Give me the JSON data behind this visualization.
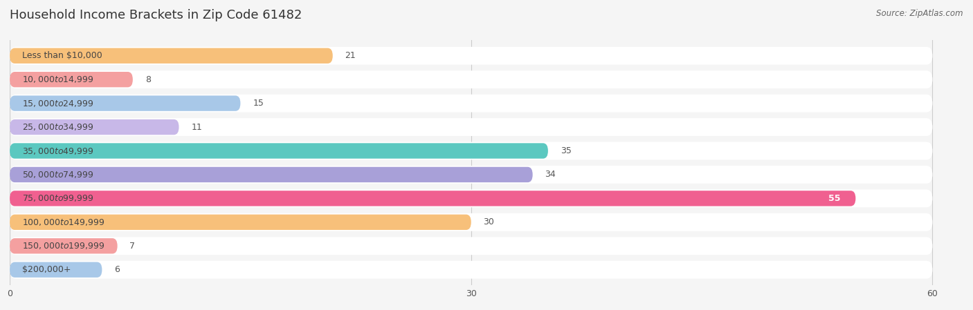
{
  "title": "Household Income Brackets in Zip Code 61482",
  "source": "Source: ZipAtlas.com",
  "categories": [
    "Less than $10,000",
    "$10,000 to $14,999",
    "$15,000 to $24,999",
    "$25,000 to $34,999",
    "$35,000 to $49,999",
    "$50,000 to $74,999",
    "$75,000 to $99,999",
    "$100,000 to $149,999",
    "$150,000 to $199,999",
    "$200,000+"
  ],
  "values": [
    21,
    8,
    15,
    11,
    35,
    34,
    55,
    30,
    7,
    6
  ],
  "colors": [
    "#F7C07A",
    "#F4A0A0",
    "#A8C8E8",
    "#C8B8E8",
    "#5BC8C0",
    "#A8A0D8",
    "#F06090",
    "#F7C07A",
    "#F4A0A0",
    "#A8C8E8"
  ],
  "xlim_data": [
    0,
    60
  ],
  "xticks": [
    0,
    30,
    60
  ],
  "bar_height": 0.65,
  "background_color": "#f5f5f5",
  "title_fontsize": 13,
  "label_fontsize": 9,
  "value_fontsize": 9,
  "row_bg_color": "#ffffff"
}
